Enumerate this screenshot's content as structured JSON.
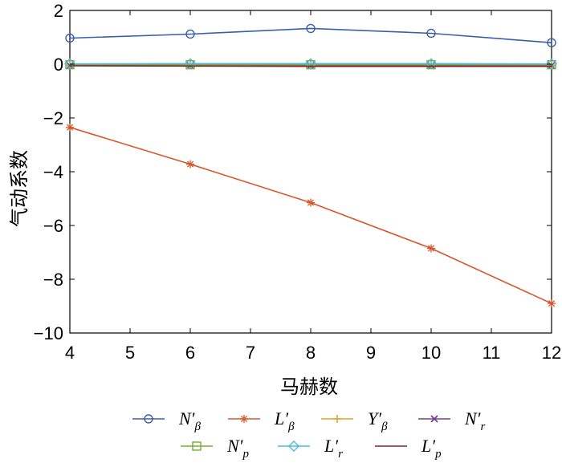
{
  "chart_data": {
    "type": "line",
    "title": "",
    "xlabel": "马赫数",
    "ylabel": "气动系数",
    "xlim": [
      4,
      12
    ],
    "ylim": [
      -10,
      2
    ],
    "x_ticks": [
      "4",
      "5",
      "6",
      "7",
      "8",
      "9",
      "10",
      "11",
      "12"
    ],
    "y_ticks": [
      "2",
      "0",
      "−2",
      "−4",
      "−6",
      "−8",
      "−10"
    ],
    "grid": false,
    "legend_position": "bottom",
    "x": [
      4,
      6,
      8,
      10,
      12
    ],
    "series": [
      {
        "name": "N′β",
        "base": "N′",
        "sub": "β",
        "color": "#3a5fa8",
        "marker": "circle",
        "values": [
          0.97,
          1.12,
          1.33,
          1.15,
          0.8
        ]
      },
      {
        "name": "L′β",
        "base": "L′",
        "sub": "β",
        "color": "#d9552b",
        "marker": "asterisk",
        "values": [
          -2.35,
          -3.72,
          -5.15,
          -6.85,
          -8.9
        ]
      },
      {
        "name": "Y′β",
        "base": "Y′",
        "sub": "β",
        "color": "#e3a427",
        "marker": "plus",
        "values": [
          -0.03,
          -0.03,
          -0.04,
          -0.04,
          -0.04
        ]
      },
      {
        "name": "N′r",
        "base": "N′",
        "sub": "r",
        "color": "#7a3a8c",
        "marker": "cross",
        "values": [
          -0.05,
          -0.05,
          -0.05,
          -0.05,
          -0.05
        ]
      },
      {
        "name": "N′p",
        "base": "N′",
        "sub": "p",
        "color": "#77ac30",
        "marker": "square",
        "values": [
          -0.02,
          -0.02,
          -0.02,
          -0.02,
          -0.02
        ]
      },
      {
        "name": "L′r",
        "base": "L′",
        "sub": "r",
        "color": "#4db8d9",
        "marker": "diamond",
        "values": [
          0.01,
          0.02,
          0.02,
          0.02,
          0.01
        ]
      },
      {
        "name": "L′p",
        "base": "L′",
        "sub": "p",
        "color": "#8b1a2b",
        "marker": "none",
        "values": [
          -0.06,
          -0.07,
          -0.08,
          -0.08,
          -0.08
        ]
      }
    ]
  }
}
